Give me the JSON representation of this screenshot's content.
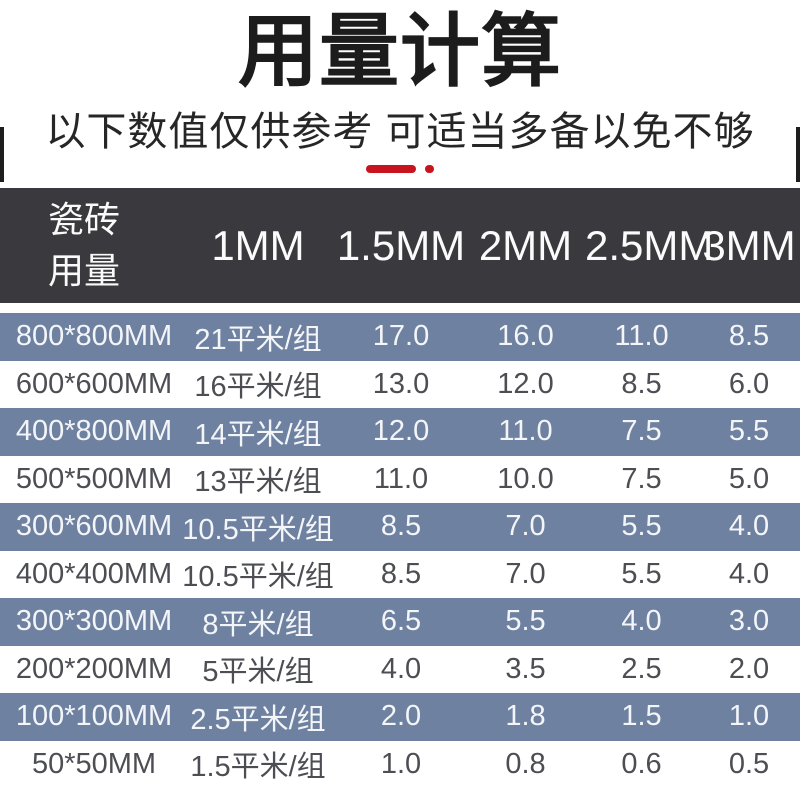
{
  "title": "用量计算",
  "subtitle": "以下数值仅供参考 可适当多备以免不够",
  "colors": {
    "accent_red": "#c8141e",
    "header_bg": "#3a3a3e",
    "row_stripe_blue": "#6e81a0",
    "body_text_dark": "#4d4e53",
    "title_black": "#1c1c1c"
  },
  "chart_data": {
    "type": "table",
    "title": "用量计算",
    "subtitle": "以下数值仅供参考 可适当多备以免不够",
    "corner_header": "瓷砖用量",
    "corner_lines": [
      "瓷砖",
      "用量"
    ],
    "columns": [
      "1MM",
      "1.5MM",
      "2MM",
      "2.5MM",
      "3MM"
    ],
    "rows": [
      {
        "size": "800*800MM",
        "values": [
          "21平米/组",
          "17.0",
          "16.0",
          "11.0",
          "8.5"
        ]
      },
      {
        "size": "600*600MM",
        "values": [
          "16平米/组",
          "13.0",
          "12.0",
          "8.5",
          "6.0"
        ]
      },
      {
        "size": "400*800MM",
        "values": [
          "14平米/组",
          "12.0",
          "11.0",
          "7.5",
          "5.5"
        ]
      },
      {
        "size": "500*500MM",
        "values": [
          "13平米/组",
          "11.0",
          "10.0",
          "7.5",
          "5.0"
        ]
      },
      {
        "size": "300*600MM",
        "values": [
          "10.5平米/组",
          "8.5",
          "7.0",
          "5.5",
          "4.0"
        ]
      },
      {
        "size": "400*400MM",
        "values": [
          "10.5平米/组",
          "8.5",
          "7.0",
          "5.5",
          "4.0"
        ]
      },
      {
        "size": "300*300MM",
        "values": [
          "8平米/组",
          "6.5",
          "5.5",
          "4.0",
          "3.0"
        ]
      },
      {
        "size": "200*200MM",
        "values": [
          "5平米/组",
          "4.0",
          "3.5",
          "2.5",
          "2.0"
        ]
      },
      {
        "size": "100*100MM",
        "values": [
          "2.5平米/组",
          "2.0",
          "1.8",
          "1.5",
          "1.0"
        ]
      },
      {
        "size": "50*50MM",
        "values": [
          "1.5平米/组",
          "1.0",
          "0.8",
          "0.6",
          "0.5"
        ]
      }
    ]
  }
}
